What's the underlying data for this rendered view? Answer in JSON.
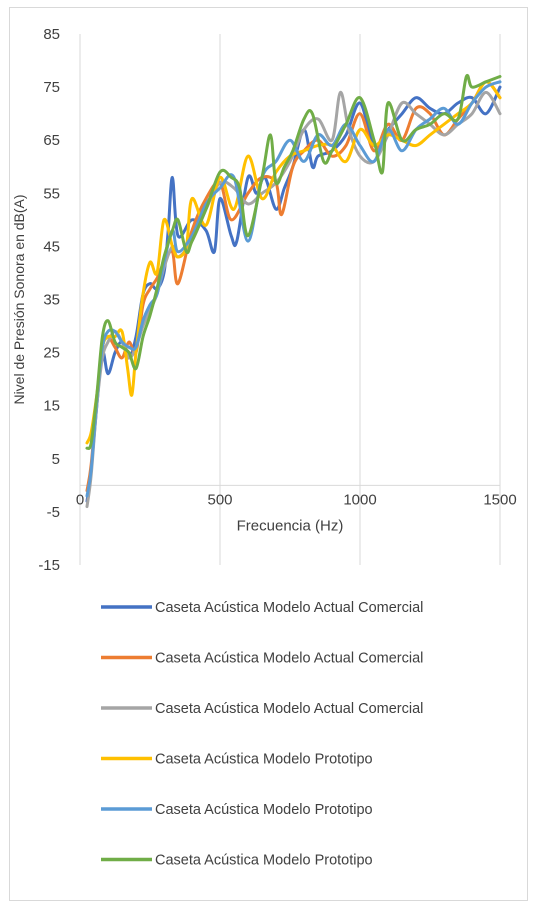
{
  "chart_data": {
    "type": "line",
    "title": "",
    "xlabel": "Frecuencia (Hz)",
    "ylabel": "Nivel de Presión Sonora en dB(A)",
    "xlim": [
      0,
      1500
    ],
    "ylim": [
      -15,
      85
    ],
    "xticks": [
      0,
      500,
      1000,
      1500
    ],
    "yticks": [
      -15,
      -5,
      5,
      15,
      25,
      35,
      45,
      55,
      65,
      75,
      85
    ],
    "grid": "vertical",
    "legend_position": "bottom",
    "series": [
      {
        "name": "Caseta Acústica Modelo Actual Comercial",
        "color": "#4472c4",
        "x": [
          25,
          40,
          60,
          80,
          100,
          125,
          150,
          175,
          200,
          225,
          250,
          275,
          300,
          315,
          330,
          350,
          400,
          450,
          480,
          500,
          540,
          560,
          600,
          630,
          660,
          700,
          730,
          760,
          800,
          830,
          850,
          900,
          950,
          1000,
          1050,
          1100,
          1150,
          1200,
          1250,
          1300,
          1350,
          1400,
          1450,
          1500
        ],
        "y": [
          -3,
          3,
          15,
          25,
          21,
          25,
          27,
          24,
          28,
          36,
          38,
          37,
          40,
          48,
          58,
          47,
          50,
          48,
          44,
          54,
          47,
          46,
          58,
          55,
          58,
          52,
          56,
          60,
          67,
          60,
          62,
          63,
          66,
          72,
          64,
          67,
          70,
          73,
          71,
          70,
          72,
          73,
          70,
          75
        ]
      },
      {
        "name": "Caseta Acústica Modelo Actual Comercial",
        "color": "#ed7d31",
        "x": [
          25,
          40,
          60,
          80,
          100,
          125,
          150,
          175,
          200,
          225,
          250,
          275,
          300,
          330,
          350,
          400,
          450,
          500,
          540,
          600,
          650,
          700,
          720,
          760,
          800,
          850,
          900,
          950,
          1000,
          1050,
          1100,
          1150,
          1200,
          1250,
          1300,
          1350,
          1400,
          1450,
          1500
        ],
        "y": [
          -1,
          4,
          16,
          26,
          28,
          26,
          24,
          27,
          25,
          34,
          37,
          39,
          42,
          44,
          38,
          48,
          54,
          57,
          50,
          55,
          58,
          57,
          51,
          60,
          63,
          65,
          62,
          64,
          70,
          63,
          68,
          65,
          71,
          70,
          66,
          69,
          72,
          76,
          73
        ]
      },
      {
        "name": "Caseta Acústica Modelo Actual Comercial",
        "color": "#a5a5a5",
        "x": [
          25,
          40,
          60,
          80,
          100,
          125,
          150,
          175,
          200,
          225,
          250,
          275,
          300,
          330,
          350,
          400,
          450,
          500,
          550,
          600,
          650,
          700,
          750,
          800,
          850,
          900,
          930,
          960,
          1000,
          1050,
          1100,
          1150,
          1200,
          1250,
          1300,
          1350,
          1400,
          1450,
          1500
        ],
        "y": [
          -4,
          2,
          15,
          24,
          27,
          29,
          27,
          24,
          26,
          30,
          33,
          36,
          41,
          45,
          43,
          46,
          52,
          57,
          56,
          53,
          55,
          57,
          61,
          67,
          69,
          65,
          74,
          67,
          62,
          61,
          66,
          72,
          70,
          68,
          66,
          68,
          70,
          74,
          70
        ]
      },
      {
        "name": "Caseta Acústica Modelo Prototipo",
        "color": "#ffc000",
        "x": [
          25,
          40,
          60,
          80,
          100,
          125,
          150,
          170,
          185,
          200,
          225,
          250,
          275,
          300,
          330,
          350,
          380,
          400,
          450,
          500,
          550,
          600,
          650,
          700,
          750,
          800,
          850,
          900,
          950,
          1000,
          1050,
          1100,
          1150,
          1200,
          1250,
          1300,
          1350,
          1400,
          1450,
          1500
        ],
        "y": [
          8,
          10,
          17,
          26,
          28,
          28,
          29,
          22,
          17,
          25,
          36,
          42,
          40,
          50,
          45,
          43,
          45,
          54,
          49,
          58,
          52,
          62,
          54,
          59,
          62,
          63,
          64,
          64,
          61,
          67,
          64,
          66,
          65,
          64,
          66,
          68,
          70,
          72,
          76,
          73
        ]
      },
      {
        "name": "Caseta Acústica Modelo Prototipo",
        "color": "#5b9bd5",
        "x": [
          25,
          40,
          60,
          80,
          100,
          125,
          150,
          175,
          200,
          225,
          250,
          275,
          300,
          330,
          350,
          400,
          450,
          500,
          550,
          600,
          650,
          700,
          750,
          800,
          850,
          900,
          950,
          1000,
          1050,
          1100,
          1150,
          1200,
          1250,
          1300,
          1350,
          1400,
          1450,
          1500
        ],
        "y": [
          -2,
          3,
          16,
          26,
          29,
          29,
          27,
          26,
          26,
          31,
          34,
          36,
          42,
          48,
          44,
          47,
          53,
          56,
          58,
          46,
          58,
          61,
          65,
          61,
          66,
          64,
          68,
          64,
          61,
          67,
          63,
          67,
          69,
          71,
          68,
          72,
          75,
          76
        ]
      },
      {
        "name": "Caseta Acústica Modelo Prototipo",
        "color": "#70ad47",
        "x": [
          25,
          40,
          60,
          80,
          100,
          125,
          150,
          175,
          200,
          225,
          250,
          275,
          300,
          330,
          350,
          380,
          400,
          450,
          500,
          540,
          570,
          600,
          650,
          680,
          700,
          730,
          760,
          800,
          830,
          870,
          900,
          950,
          1000,
          1050,
          1080,
          1100,
          1150,
          1200,
          1250,
          1300,
          1350,
          1380,
          1400,
          1450,
          1500
        ],
        "y": [
          7,
          8,
          17,
          28,
          31,
          27,
          26,
          25,
          22,
          28,
          32,
          37,
          43,
          48,
          50,
          44,
          46,
          52,
          59,
          58,
          56,
          47,
          58,
          66,
          57,
          60,
          63,
          69,
          70,
          61,
          63,
          68,
          73,
          65,
          59,
          72,
          65,
          67,
          68,
          70,
          69,
          77,
          75,
          76,
          77
        ]
      }
    ]
  }
}
